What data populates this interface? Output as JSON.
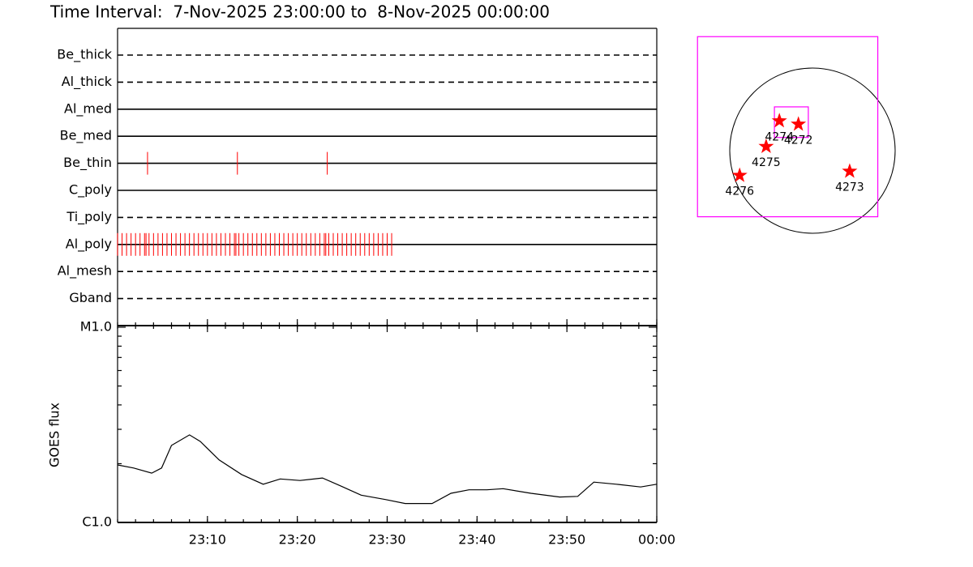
{
  "title": "Time Interval:  7-Nov-2025 23:00:00 to  8-Nov-2025 00:00:00",
  "chart_data": [
    {
      "type": "timeline",
      "color": "#ff0000",
      "rows": [
        {
          "name": "Be_thick",
          "style": "dashed",
          "events": []
        },
        {
          "name": "Al_thick",
          "style": "dashed",
          "events": []
        },
        {
          "name": "Al_med",
          "style": "solid",
          "events": []
        },
        {
          "name": "Be_med",
          "style": "solid",
          "events": []
        },
        {
          "name": "Be_thin",
          "style": "solid",
          "events": [
            "23:03:20",
            "23:13:20",
            "23:23:20"
          ]
        },
        {
          "name": "C_poly",
          "style": "solid",
          "events": []
        },
        {
          "name": "Ti_poly",
          "style": "dashed",
          "events": []
        },
        {
          "name": "Al_poly",
          "style": "solid",
          "events": [
            "23:00:00",
            "23:00:30",
            "23:01:00",
            "23:01:30",
            "23:02:00",
            "23:02:30",
            "23:03:00",
            "23:03:10",
            "23:03:30",
            "23:04:00",
            "23:04:30",
            "23:05:00",
            "23:05:30",
            "23:06:00",
            "23:06:30",
            "23:07:00",
            "23:07:30",
            "23:08:00",
            "23:08:30",
            "23:09:00",
            "23:09:30",
            "23:10:00",
            "23:10:30",
            "23:11:00",
            "23:11:30",
            "23:12:00",
            "23:12:30",
            "23:13:00",
            "23:13:10",
            "23:13:30",
            "23:14:00",
            "23:14:30",
            "23:15:00",
            "23:15:30",
            "23:16:00",
            "23:16:30",
            "23:17:00",
            "23:17:30",
            "23:18:00",
            "23:18:30",
            "23:19:00",
            "23:19:30",
            "23:20:00",
            "23:20:30",
            "23:21:00",
            "23:21:30",
            "23:22:00",
            "23:22:30",
            "23:23:00",
            "23:23:10",
            "23:23:30",
            "23:24:00",
            "23:24:30",
            "23:25:00",
            "23:25:30",
            "23:26:00",
            "23:26:30",
            "23:27:00",
            "23:27:30",
            "23:28:00",
            "23:28:30",
            "23:29:00",
            "23:29:30",
            "23:30:00",
            "23:30:30"
          ]
        },
        {
          "name": "Al_mesh",
          "style": "dashed",
          "events": []
        },
        {
          "name": "Gband",
          "style": "dashed",
          "events": []
        }
      ]
    },
    {
      "type": "line",
      "ylabel": "GOES flux",
      "color": "#000000",
      "log": true,
      "x": [
        "23:00:00",
        "23:01:48",
        "23:03:48",
        "23:04:54",
        "23:06:00",
        "23:08:00",
        "23:09:12",
        "23:11:18",
        "23:13:48",
        "23:16:12",
        "23:18:06",
        "23:20:18",
        "23:22:48",
        "23:24:48",
        "23:27:06",
        "23:29:48",
        "23:32:00",
        "23:35:00",
        "23:37:06",
        "23:39:06",
        "23:41:06",
        "23:42:54",
        "23:46:00",
        "23:49:12",
        "23:51:12",
        "23:53:00",
        "23:55:30",
        "23:58:12",
        "00:00:00"
      ],
      "values": [
        1.97e-06,
        1.9e-06,
        1.79e-06,
        1.9e-06,
        2.48e-06,
        2.81e-06,
        2.6e-06,
        2.09e-06,
        1.76e-06,
        1.57e-06,
        1.67e-06,
        1.64e-06,
        1.69e-06,
        1.54e-06,
        1.38e-06,
        1.31e-06,
        1.25e-06,
        1.25e-06,
        1.41e-06,
        1.47e-06,
        1.47e-06,
        1.49e-06,
        1.41e-06,
        1.35e-06,
        1.36e-06,
        1.61e-06,
        1.57e-06,
        1.52e-06,
        1.57e-06
      ],
      "xlim": [
        "23:00",
        "00:00"
      ],
      "xticks": [
        "23:10",
        "23:20",
        "23:30",
        "23:40",
        "23:50",
        "00:00"
      ],
      "ylim": [
        1e-06,
        1e-05
      ],
      "yticks": [
        {
          "value": 1e-06,
          "label": "C1.0"
        },
        {
          "value": 1e-05,
          "label": "M1.0"
        }
      ]
    },
    {
      "type": "map",
      "circle_color": "#000000",
      "box_color": "#ff00ff",
      "point_color": "#ff0000",
      "boxes": [
        {
          "xlim": [
            -1.39,
            0.79
          ],
          "ylim": [
            -0.8,
            1.38
          ]
        },
        {
          "xlim": [
            -0.46,
            -0.05
          ],
          "ylim": [
            0.16,
            0.53
          ]
        }
      ],
      "points": [
        {
          "label": "4274",
          "x": -0.4,
          "y": 0.36
        },
        {
          "label": "4272",
          "x": -0.17,
          "y": 0.32
        },
        {
          "label": "4275",
          "x": -0.56,
          "y": 0.05
        },
        {
          "label": "4276",
          "x": -0.88,
          "y": -0.3
        },
        {
          "label": "4273",
          "x": 0.45,
          "y": -0.25
        }
      ]
    }
  ]
}
